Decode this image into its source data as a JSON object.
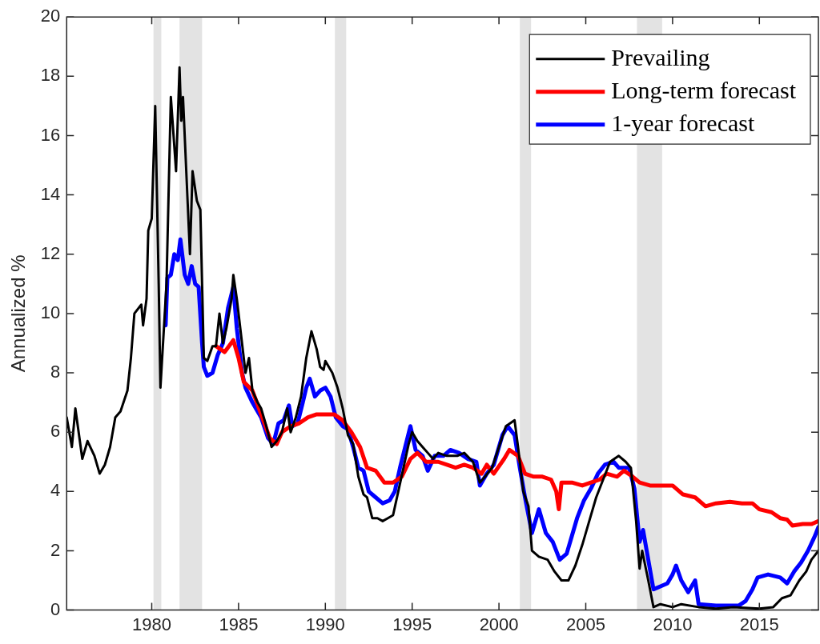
{
  "chart_data": {
    "type": "line",
    "ylabel": "Annualized %",
    "xlim": [
      1975.1,
      2018.4
    ],
    "xticks": [
      1980,
      1985,
      1990,
      1995,
      2000,
      2005,
      2010,
      2015
    ],
    "ylim": [
      0,
      20
    ],
    "yticks": [
      0,
      2,
      4,
      6,
      8,
      10,
      12,
      14,
      16,
      18,
      20
    ],
    "grid": false,
    "legend": "top right",
    "marker": "none",
    "line_style": "solid",
    "bands": [
      {
        "axis": "x",
        "from": 1980.1,
        "to": 1980.55,
        "color": "#e3e3e3"
      },
      {
        "axis": "x",
        "from": 1981.6,
        "to": 1982.9,
        "color": "#e3e3e3"
      },
      {
        "axis": "x",
        "from": 1990.55,
        "to": 1991.2,
        "color": "#e3e3e3"
      },
      {
        "axis": "x",
        "from": 2001.2,
        "to": 2001.85,
        "color": "#e3e3e3"
      },
      {
        "axis": "x",
        "from": 2007.95,
        "to": 2009.4,
        "color": "#e3e3e3"
      }
    ],
    "series": [
      {
        "name": "Prevailing",
        "color": "#000000",
        "x": [
          1975.1,
          1975.4,
          1975.6,
          1976.0,
          1976.3,
          1976.7,
          1977.0,
          1977.3,
          1977.6,
          1977.9,
          1978.2,
          1978.6,
          1978.8,
          1979.0,
          1979.4,
          1979.5,
          1979.7,
          1979.8,
          1980.0,
          1980.2,
          1980.4,
          1980.5,
          1980.85,
          1981.1,
          1981.4,
          1981.6,
          1981.7,
          1981.8,
          1982.2,
          1982.35,
          1982.6,
          1982.8,
          1983.0,
          1983.2,
          1983.5,
          1983.7,
          1983.9,
          1984.1,
          1984.3,
          1984.6,
          1984.7,
          1984.9,
          1985.2,
          1985.4,
          1985.6,
          1985.8,
          1986.1,
          1986.3,
          1986.6,
          1986.9,
          1987.2,
          1987.5,
          1987.8,
          1988.0,
          1988.3,
          1988.6,
          1988.9,
          1989.2,
          1989.5,
          1989.7,
          1989.9,
          1990.0,
          1990.4,
          1990.7,
          1991.0,
          1991.3,
          1991.6,
          1991.9,
          1992.2,
          1992.4,
          1992.7,
          1993.0,
          1993.3,
          1993.6,
          1993.9,
          1994.2,
          1994.5,
          1994.8,
          1995.0,
          1995.3,
          1995.6,
          1995.9,
          1996.2,
          1996.5,
          1997.0,
          1997.6,
          1998.0,
          1998.5,
          1998.9,
          1999.2,
          1999.6,
          2000.0,
          2000.4,
          2000.9,
          2001.1,
          2001.4,
          2001.7,
          2001.9,
          2002.3,
          2002.8,
          2003.2,
          2003.6,
          2004.0,
          2004.4,
          2004.8,
          2005.2,
          2005.6,
          2006.0,
          2006.4,
          2006.9,
          2007.3,
          2007.6,
          2007.9,
          2008.1,
          2008.25,
          2008.6,
          2008.9,
          2009.3,
          2010.0,
          2010.5,
          2011.5,
          2012.5,
          2013.5,
          2015.0,
          2015.8,
          2016.3,
          2016.8,
          2017.3,
          2017.7,
          2018.0,
          2018.4
        ],
        "values": [
          6.5,
          5.5,
          6.8,
          5.1,
          5.7,
          5.2,
          4.6,
          4.9,
          5.5,
          6.5,
          6.7,
          7.4,
          8.5,
          10.0,
          10.3,
          9.6,
          10.5,
          12.8,
          13.2,
          17.0,
          11.0,
          7.5,
          11.0,
          17.3,
          14.8,
          18.3,
          16.5,
          17.3,
          12.0,
          14.8,
          13.8,
          13.5,
          8.5,
          8.4,
          8.9,
          8.9,
          10.0,
          9.0,
          9.5,
          10.5,
          11.3,
          10.5,
          9.0,
          8.0,
          8.5,
          7.4,
          7.0,
          6.8,
          6.2,
          5.5,
          5.7,
          6.0,
          6.8,
          6.0,
          6.5,
          7.2,
          8.5,
          9.4,
          8.8,
          8.2,
          8.1,
          8.4,
          8.0,
          7.5,
          6.8,
          5.9,
          5.6,
          4.5,
          3.9,
          3.8,
          3.1,
          3.1,
          3.0,
          3.1,
          3.2,
          4.0,
          4.8,
          5.6,
          6.0,
          5.7,
          5.5,
          5.3,
          5.1,
          5.3,
          5.2,
          5.2,
          5.3,
          5.0,
          4.3,
          4.5,
          4.8,
          5.5,
          6.2,
          6.4,
          5.5,
          4.0,
          3.5,
          2.0,
          1.8,
          1.7,
          1.3,
          1.0,
          1.0,
          1.5,
          2.2,
          3.0,
          3.8,
          4.4,
          5.0,
          5.2,
          5.0,
          4.8,
          3.0,
          1.4,
          2.0,
          1.0,
          0.1,
          0.2,
          0.1,
          0.2,
          0.1,
          0.05,
          0.1,
          0.05,
          0.1,
          0.4,
          0.5,
          1.0,
          1.3,
          1.7,
          2.0
        ]
      },
      {
        "name": "Long-term forecast",
        "color": "#ff0000",
        "x": [
          1983.7,
          1984.2,
          1984.7,
          1985.0,
          1985.3,
          1985.8,
          1986.3,
          1986.8,
          1987.2,
          1987.5,
          1988.0,
          1988.5,
          1989.0,
          1989.5,
          1990.5,
          1991.0,
          1991.5,
          1992.0,
          1992.4,
          1992.9,
          1993.4,
          1993.9,
          1994.4,
          1994.9,
          1995.3,
          1995.8,
          1996.5,
          1997.0,
          1997.5,
          1998.0,
          1998.5,
          1999.0,
          1999.3,
          1999.7,
          2000.3,
          2000.6,
          2001.1,
          2001.5,
          2002.0,
          2002.5,
          2003.0,
          2003.3,
          2003.45,
          2003.6,
          2004.2,
          2004.8,
          2005.3,
          2005.8,
          2006.2,
          2006.8,
          2007.2,
          2007.7,
          2008.1,
          2008.7,
          2009.3,
          2010.0,
          2010.6,
          2011.3,
          2011.9,
          2012.5,
          2013.3,
          2014.0,
          2014.6,
          2015.0,
          2015.7,
          2016.2,
          2016.6,
          2016.9,
          2017.5,
          2018.0,
          2018.4
        ],
        "values": [
          8.9,
          8.7,
          9.1,
          8.5,
          7.7,
          7.4,
          6.6,
          5.8,
          5.6,
          6.0,
          6.2,
          6.3,
          6.5,
          6.6,
          6.6,
          6.4,
          6.0,
          5.5,
          4.8,
          4.7,
          4.3,
          4.3,
          4.5,
          5.1,
          5.3,
          5.0,
          5.0,
          4.9,
          4.8,
          4.9,
          4.8,
          4.6,
          4.9,
          4.6,
          5.1,
          5.4,
          5.2,
          4.6,
          4.5,
          4.5,
          4.4,
          4.0,
          3.4,
          4.3,
          4.3,
          4.2,
          4.3,
          4.4,
          4.6,
          4.5,
          4.7,
          4.5,
          4.3,
          4.2,
          4.2,
          4.2,
          3.9,
          3.8,
          3.5,
          3.6,
          3.65,
          3.6,
          3.6,
          3.4,
          3.3,
          3.1,
          3.05,
          2.85,
          2.9,
          2.9,
          3.0
        ]
      },
      {
        "name": "1-year forecast",
        "color": "#0000ff",
        "x": [
          1980.8,
          1980.9,
          1981.1,
          1981.3,
          1981.5,
          1981.65,
          1981.9,
          1982.1,
          1982.3,
          1982.5,
          1982.7,
          1982.9,
          1983.0,
          1983.2,
          1983.5,
          1983.8,
          1984.1,
          1984.4,
          1984.7,
          1984.9,
          1985.2,
          1985.4,
          1985.8,
          1986.3,
          1986.7,
          1987.0,
          1987.3,
          1987.6,
          1987.9,
          1988.1,
          1988.4,
          1988.7,
          1988.9,
          1989.1,
          1989.4,
          1989.7,
          1990.0,
          1990.3,
          1990.6,
          1991.0,
          1991.3,
          1991.6,
          1991.9,
          1992.2,
          1992.5,
          1992.9,
          1993.3,
          1993.7,
          1994.0,
          1994.3,
          1994.6,
          1994.9,
          1995.2,
          1995.6,
          1995.9,
          1996.3,
          1996.8,
          1997.2,
          1997.7,
          1998.2,
          1998.7,
          1998.9,
          1999.3,
          1999.7,
          2000.2,
          2000.5,
          2000.9,
          2001.2,
          2001.5,
          2001.9,
          2002.3,
          2002.7,
          2003.1,
          2003.5,
          2003.9,
          2004.2,
          2004.5,
          2004.9,
          2005.3,
          2005.7,
          2006.1,
          2006.6,
          2006.9,
          2007.5,
          2007.8,
          2008.1,
          2008.3,
          2008.6,
          2008.9,
          2009.3,
          2009.7,
          2010.0,
          2010.2,
          2010.5,
          2010.9,
          2011.3,
          2011.5,
          2012.5,
          2013.8,
          2014.2,
          2014.6,
          2014.9,
          2015.5,
          2016.2,
          2016.6,
          2017.0,
          2017.4,
          2017.8,
          2018.2,
          2018.4
        ],
        "values": [
          9.6,
          11.2,
          11.3,
          12.0,
          11.8,
          12.5,
          11.3,
          11.0,
          11.6,
          11.0,
          10.9,
          9.0,
          8.2,
          7.9,
          8.0,
          8.6,
          9.0,
          10.2,
          10.9,
          9.5,
          8.0,
          7.5,
          7.0,
          6.5,
          5.8,
          5.6,
          6.3,
          6.4,
          6.9,
          6.2,
          6.3,
          7.0,
          7.5,
          7.8,
          7.2,
          7.4,
          7.5,
          7.2,
          6.5,
          6.2,
          6.1,
          5.5,
          4.8,
          4.7,
          4.0,
          3.8,
          3.6,
          3.7,
          4.0,
          4.8,
          5.5,
          6.2,
          5.4,
          5.2,
          4.7,
          5.2,
          5.2,
          5.4,
          5.3,
          5.1,
          5.0,
          4.2,
          4.6,
          4.9,
          5.9,
          6.2,
          5.9,
          4.8,
          3.8,
          2.6,
          3.4,
          2.6,
          2.3,
          1.7,
          1.9,
          2.5,
          3.1,
          3.7,
          4.1,
          4.6,
          4.9,
          5.0,
          4.8,
          4.8,
          4.1,
          2.3,
          2.7,
          1.7,
          0.7,
          0.8,
          0.9,
          1.2,
          1.5,
          1.0,
          0.6,
          1.0,
          0.2,
          0.15,
          0.15,
          0.3,
          0.7,
          1.1,
          1.2,
          1.1,
          0.9,
          1.3,
          1.6,
          2.0,
          2.5,
          2.8
        ]
      }
    ]
  }
}
